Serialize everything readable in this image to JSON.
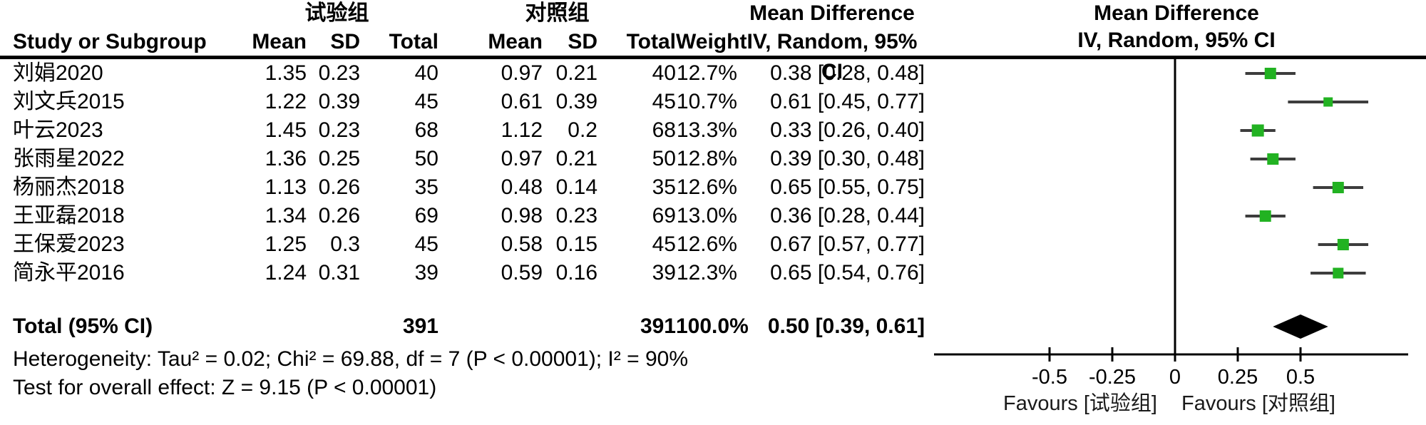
{
  "header": {
    "study_col": "Study or Subgroup",
    "exp_group": "试验组",
    "ctl_group": "对照组",
    "mean": "Mean",
    "sd": "SD",
    "total": "Total",
    "weight": "Weight",
    "md_title": "Mean Difference",
    "md_subtitle": "IV, Random, 95% CI",
    "plot_title": "Mean Difference",
    "plot_subtitle": "IV, Random, 95% CI"
  },
  "footer": {
    "heterogeneity": "Heterogeneity: Tau² = 0.02; Chi² = 69.88, df = 7 (P < 0.00001); I² = 90%",
    "overall_effect": "Test for overall effect: Z = 9.15 (P < 0.00001)"
  },
  "colors": {
    "marker_green": "#22b222",
    "ci_line": "#3d3d3d",
    "axis": "#000000",
    "diamond": "#000000"
  },
  "chart_data": {
    "type": "scatter",
    "subtype": "forest-plot",
    "effect_measure": "Mean Difference, IV, Random, 95% CI",
    "xlim": [
      -0.96,
      0.92
    ],
    "ticks": [
      -0.5,
      -0.25,
      0,
      0.25,
      0.5
    ],
    "tick_labels": [
      "-0.5",
      "-0.25",
      "0",
      "0.25",
      "0.5"
    ],
    "favours_left": "Favours [试验组]",
    "favours_right": "Favours [对照组]",
    "studies": [
      {
        "name": "刘娟2020",
        "mean_e": "1.35",
        "sd_e": "0.23",
        "n_e": "40",
        "mean_c": "0.97",
        "sd_c": "0.21",
        "n_c": "40",
        "weight": "12.7%",
        "w": 12.7,
        "md": 0.38,
        "lo": 0.28,
        "hi": 0.48,
        "ci_text": "0.38 [0.28, 0.48]"
      },
      {
        "name": "刘文兵2015",
        "mean_e": "1.22",
        "sd_e": "0.39",
        "n_e": "45",
        "mean_c": "0.61",
        "sd_c": "0.39",
        "n_c": "45",
        "weight": "10.7%",
        "w": 10.7,
        "md": 0.61,
        "lo": 0.45,
        "hi": 0.77,
        "ci_text": "0.61 [0.45, 0.77]"
      },
      {
        "name": "叶云2023",
        "mean_e": "1.45",
        "sd_e": "0.23",
        "n_e": "68",
        "mean_c": "1.12",
        "sd_c": "0.2",
        "n_c": "68",
        "weight": "13.3%",
        "w": 13.3,
        "md": 0.33,
        "lo": 0.26,
        "hi": 0.4,
        "ci_text": "0.33 [0.26, 0.40]"
      },
      {
        "name": "张雨星2022",
        "mean_e": "1.36",
        "sd_e": "0.25",
        "n_e": "50",
        "mean_c": "0.97",
        "sd_c": "0.21",
        "n_c": "50",
        "weight": "12.8%",
        "w": 12.8,
        "md": 0.39,
        "lo": 0.3,
        "hi": 0.48,
        "ci_text": "0.39 [0.30, 0.48]"
      },
      {
        "name": "杨丽杰2018",
        "mean_e": "1.13",
        "sd_e": "0.26",
        "n_e": "35",
        "mean_c": "0.48",
        "sd_c": "0.14",
        "n_c": "35",
        "weight": "12.6%",
        "w": 12.6,
        "md": 0.65,
        "lo": 0.55,
        "hi": 0.75,
        "ci_text": "0.65 [0.55, 0.75]"
      },
      {
        "name": "王亚磊2018",
        "mean_e": "1.34",
        "sd_e": "0.26",
        "n_e": "69",
        "mean_c": "0.98",
        "sd_c": "0.23",
        "n_c": "69",
        "weight": "13.0%",
        "w": 13.0,
        "md": 0.36,
        "lo": 0.28,
        "hi": 0.44,
        "ci_text": "0.36 [0.28, 0.44]"
      },
      {
        "name": "王保爱2023",
        "mean_e": "1.25",
        "sd_e": "0.3",
        "n_e": "45",
        "mean_c": "0.58",
        "sd_c": "0.15",
        "n_c": "45",
        "weight": "12.6%",
        "w": 12.6,
        "md": 0.67,
        "lo": 0.57,
        "hi": 0.77,
        "ci_text": "0.67 [0.57, 0.77]"
      },
      {
        "name": "简永平2016",
        "mean_e": "1.24",
        "sd_e": "0.31",
        "n_e": "39",
        "mean_c": "0.59",
        "sd_c": "0.16",
        "n_c": "39",
        "weight": "12.3%",
        "w": 12.3,
        "md": 0.65,
        "lo": 0.54,
        "hi": 0.76,
        "ci_text": "0.65 [0.54, 0.76]"
      }
    ],
    "total": {
      "label": "Total (95% CI)",
      "n_e": "391",
      "n_c": "391",
      "weight": "100.0%",
      "md": 0.5,
      "lo": 0.39,
      "hi": 0.61,
      "ci_text": "0.50 [0.39, 0.61]"
    }
  }
}
